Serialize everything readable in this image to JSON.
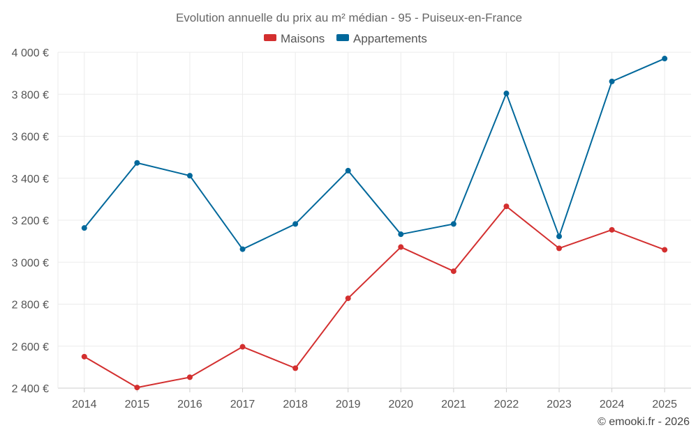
{
  "chart_data": {
    "type": "line",
    "title": "Evolution annuelle du prix au m² médian - 95 - Puiseux-en-France",
    "xlabel": "",
    "ylabel": "",
    "categories": [
      "2014",
      "2015",
      "2016",
      "2017",
      "2018",
      "2019",
      "2020",
      "2021",
      "2022",
      "2023",
      "2024",
      "2025"
    ],
    "ylim": [
      2400,
      4000
    ],
    "yticks": [
      2400,
      2600,
      2800,
      3000,
      3200,
      3400,
      3600,
      3800,
      4000
    ],
    "ytick_labels": [
      "2 400 €",
      "2 600 €",
      "2 800 €",
      "3 000 €",
      "3 200 €",
      "3 400 €",
      "3 600 €",
      "3 800 €",
      "4 000 €"
    ],
    "grid": true,
    "legend_position": "top-center",
    "series": [
      {
        "name": "Maisons",
        "color": "#d32f2f",
        "values": [
          2550,
          2403,
          2452,
          2597,
          2495,
          2828,
          3072,
          2957,
          3266,
          3066,
          3154,
          3059
        ]
      },
      {
        "name": "Appartements",
        "color": "#01689b",
        "values": [
          3163,
          3473,
          3412,
          3062,
          3182,
          3436,
          3133,
          3182,
          3804,
          3123,
          3861,
          3970
        ]
      }
    ]
  },
  "credit": "© emooki.fr - 2026"
}
